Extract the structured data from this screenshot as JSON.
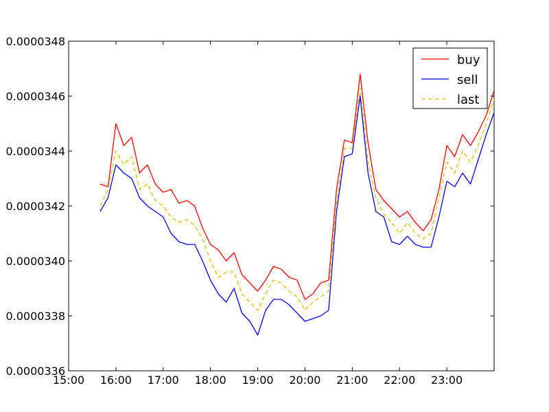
{
  "chart_data": {
    "type": "line",
    "title": "",
    "xlabel": "",
    "ylabel": "",
    "xlim": [
      "15:00",
      "24:00"
    ],
    "ylim": [
      3.36e-05,
      3.48e-05
    ],
    "x_ticks": [
      "15:00",
      "16:00",
      "17:00",
      "18:00",
      "19:00",
      "20:00",
      "21:00",
      "22:00",
      "23:00"
    ],
    "y_ticks": [
      "0.0000336",
      "0.0000338",
      "0.0000340",
      "0.0000342",
      "0.0000344",
      "0.0000346",
      "0.0000348"
    ],
    "grid": false,
    "legend_position": "top-right",
    "x": [
      "15:40",
      "15:50",
      "16:00",
      "16:10",
      "16:20",
      "16:30",
      "16:40",
      "16:50",
      "17:00",
      "17:10",
      "17:20",
      "17:30",
      "17:40",
      "17:50",
      "18:00",
      "18:10",
      "18:20",
      "18:30",
      "18:40",
      "18:50",
      "19:00",
      "19:10",
      "19:20",
      "19:30",
      "19:40",
      "19:50",
      "20:00",
      "20:10",
      "20:20",
      "20:30",
      "20:40",
      "20:50",
      "21:00",
      "21:10",
      "21:20",
      "21:30",
      "21:40",
      "21:50",
      "22:00",
      "22:10",
      "22:20",
      "22:30",
      "22:40",
      "22:50",
      "23:00",
      "23:10",
      "23:20",
      "23:30",
      "23:40",
      "23:50",
      "24:00"
    ],
    "series": [
      {
        "name": "buy",
        "color": "#ff0000",
        "dash": "solid",
        "values": [
          3.428e-05,
          3.427e-05,
          3.45e-05,
          3.442e-05,
          3.445e-05,
          3.432e-05,
          3.435e-05,
          3.428e-05,
          3.425e-05,
          3.426e-05,
          3.421e-05,
          3.422e-05,
          3.42e-05,
          3.412e-05,
          3.406e-05,
          3.404e-05,
          3.4e-05,
          3.403e-05,
          3.395e-05,
          3.392e-05,
          3.389e-05,
          3.393e-05,
          3.398e-05,
          3.397e-05,
          3.394e-05,
          3.393e-05,
          3.386e-05,
          3.388e-05,
          3.392e-05,
          3.393e-05,
          3.426e-05,
          3.444e-05,
          3.443e-05,
          3.468e-05,
          3.443e-05,
          3.426e-05,
          3.422e-05,
          3.419e-05,
          3.416e-05,
          3.418e-05,
          3.414e-05,
          3.411e-05,
          3.415e-05,
          3.426e-05,
          3.442e-05,
          3.438e-05,
          3.446e-05,
          3.442e-05,
          3.447e-05,
          3.453e-05,
          3.462e-05
        ]
      },
      {
        "name": "sell",
        "color": "#0000ff",
        "dash": "solid",
        "values": [
          3.418e-05,
          3.423e-05,
          3.435e-05,
          3.432e-05,
          3.43e-05,
          3.423e-05,
          3.42e-05,
          3.418e-05,
          3.416e-05,
          3.41e-05,
          3.407e-05,
          3.406e-05,
          3.406e-05,
          3.4e-05,
          3.393e-05,
          3.388e-05,
          3.385e-05,
          3.39e-05,
          3.381e-05,
          3.378e-05,
          3.373e-05,
          3.382e-05,
          3.386e-05,
          3.386e-05,
          3.384e-05,
          3.381e-05,
          3.378e-05,
          3.379e-05,
          3.38e-05,
          3.382e-05,
          3.418e-05,
          3.438e-05,
          3.439e-05,
          3.46e-05,
          3.432e-05,
          3.418e-05,
          3.416e-05,
          3.407e-05,
          3.406e-05,
          3.409e-05,
          3.406e-05,
          3.405e-05,
          3.405e-05,
          3.416e-05,
          3.429e-05,
          3.427e-05,
          3.432e-05,
          3.428e-05,
          3.437e-05,
          3.446e-05,
          3.454e-05
        ]
      },
      {
        "name": "last",
        "color": "#d4c200",
        "dash": "dashed",
        "values": [
          3.42e-05,
          3.426e-05,
          3.44e-05,
          3.435e-05,
          3.438e-05,
          3.426e-05,
          3.428e-05,
          3.422e-05,
          3.42e-05,
          3.416e-05,
          3.414e-05,
          3.415e-05,
          3.413e-05,
          3.408e-05,
          3.4e-05,
          3.394e-05,
          3.396e-05,
          3.396e-05,
          3.388e-05,
          3.385e-05,
          3.382e-05,
          3.388e-05,
          3.393e-05,
          3.392e-05,
          3.389e-05,
          3.387e-05,
          3.382e-05,
          3.385e-05,
          3.387e-05,
          3.389e-05,
          3.421e-05,
          3.441e-05,
          3.441e-05,
          3.463e-05,
          3.436e-05,
          3.423e-05,
          3.417e-05,
          3.414e-05,
          3.41e-05,
          3.414e-05,
          3.41e-05,
          3.408e-05,
          3.41e-05,
          3.423e-05,
          3.436e-05,
          3.432e-05,
          3.44e-05,
          3.436e-05,
          3.442e-05,
          3.45e-05,
          3.459e-05
        ]
      }
    ]
  }
}
